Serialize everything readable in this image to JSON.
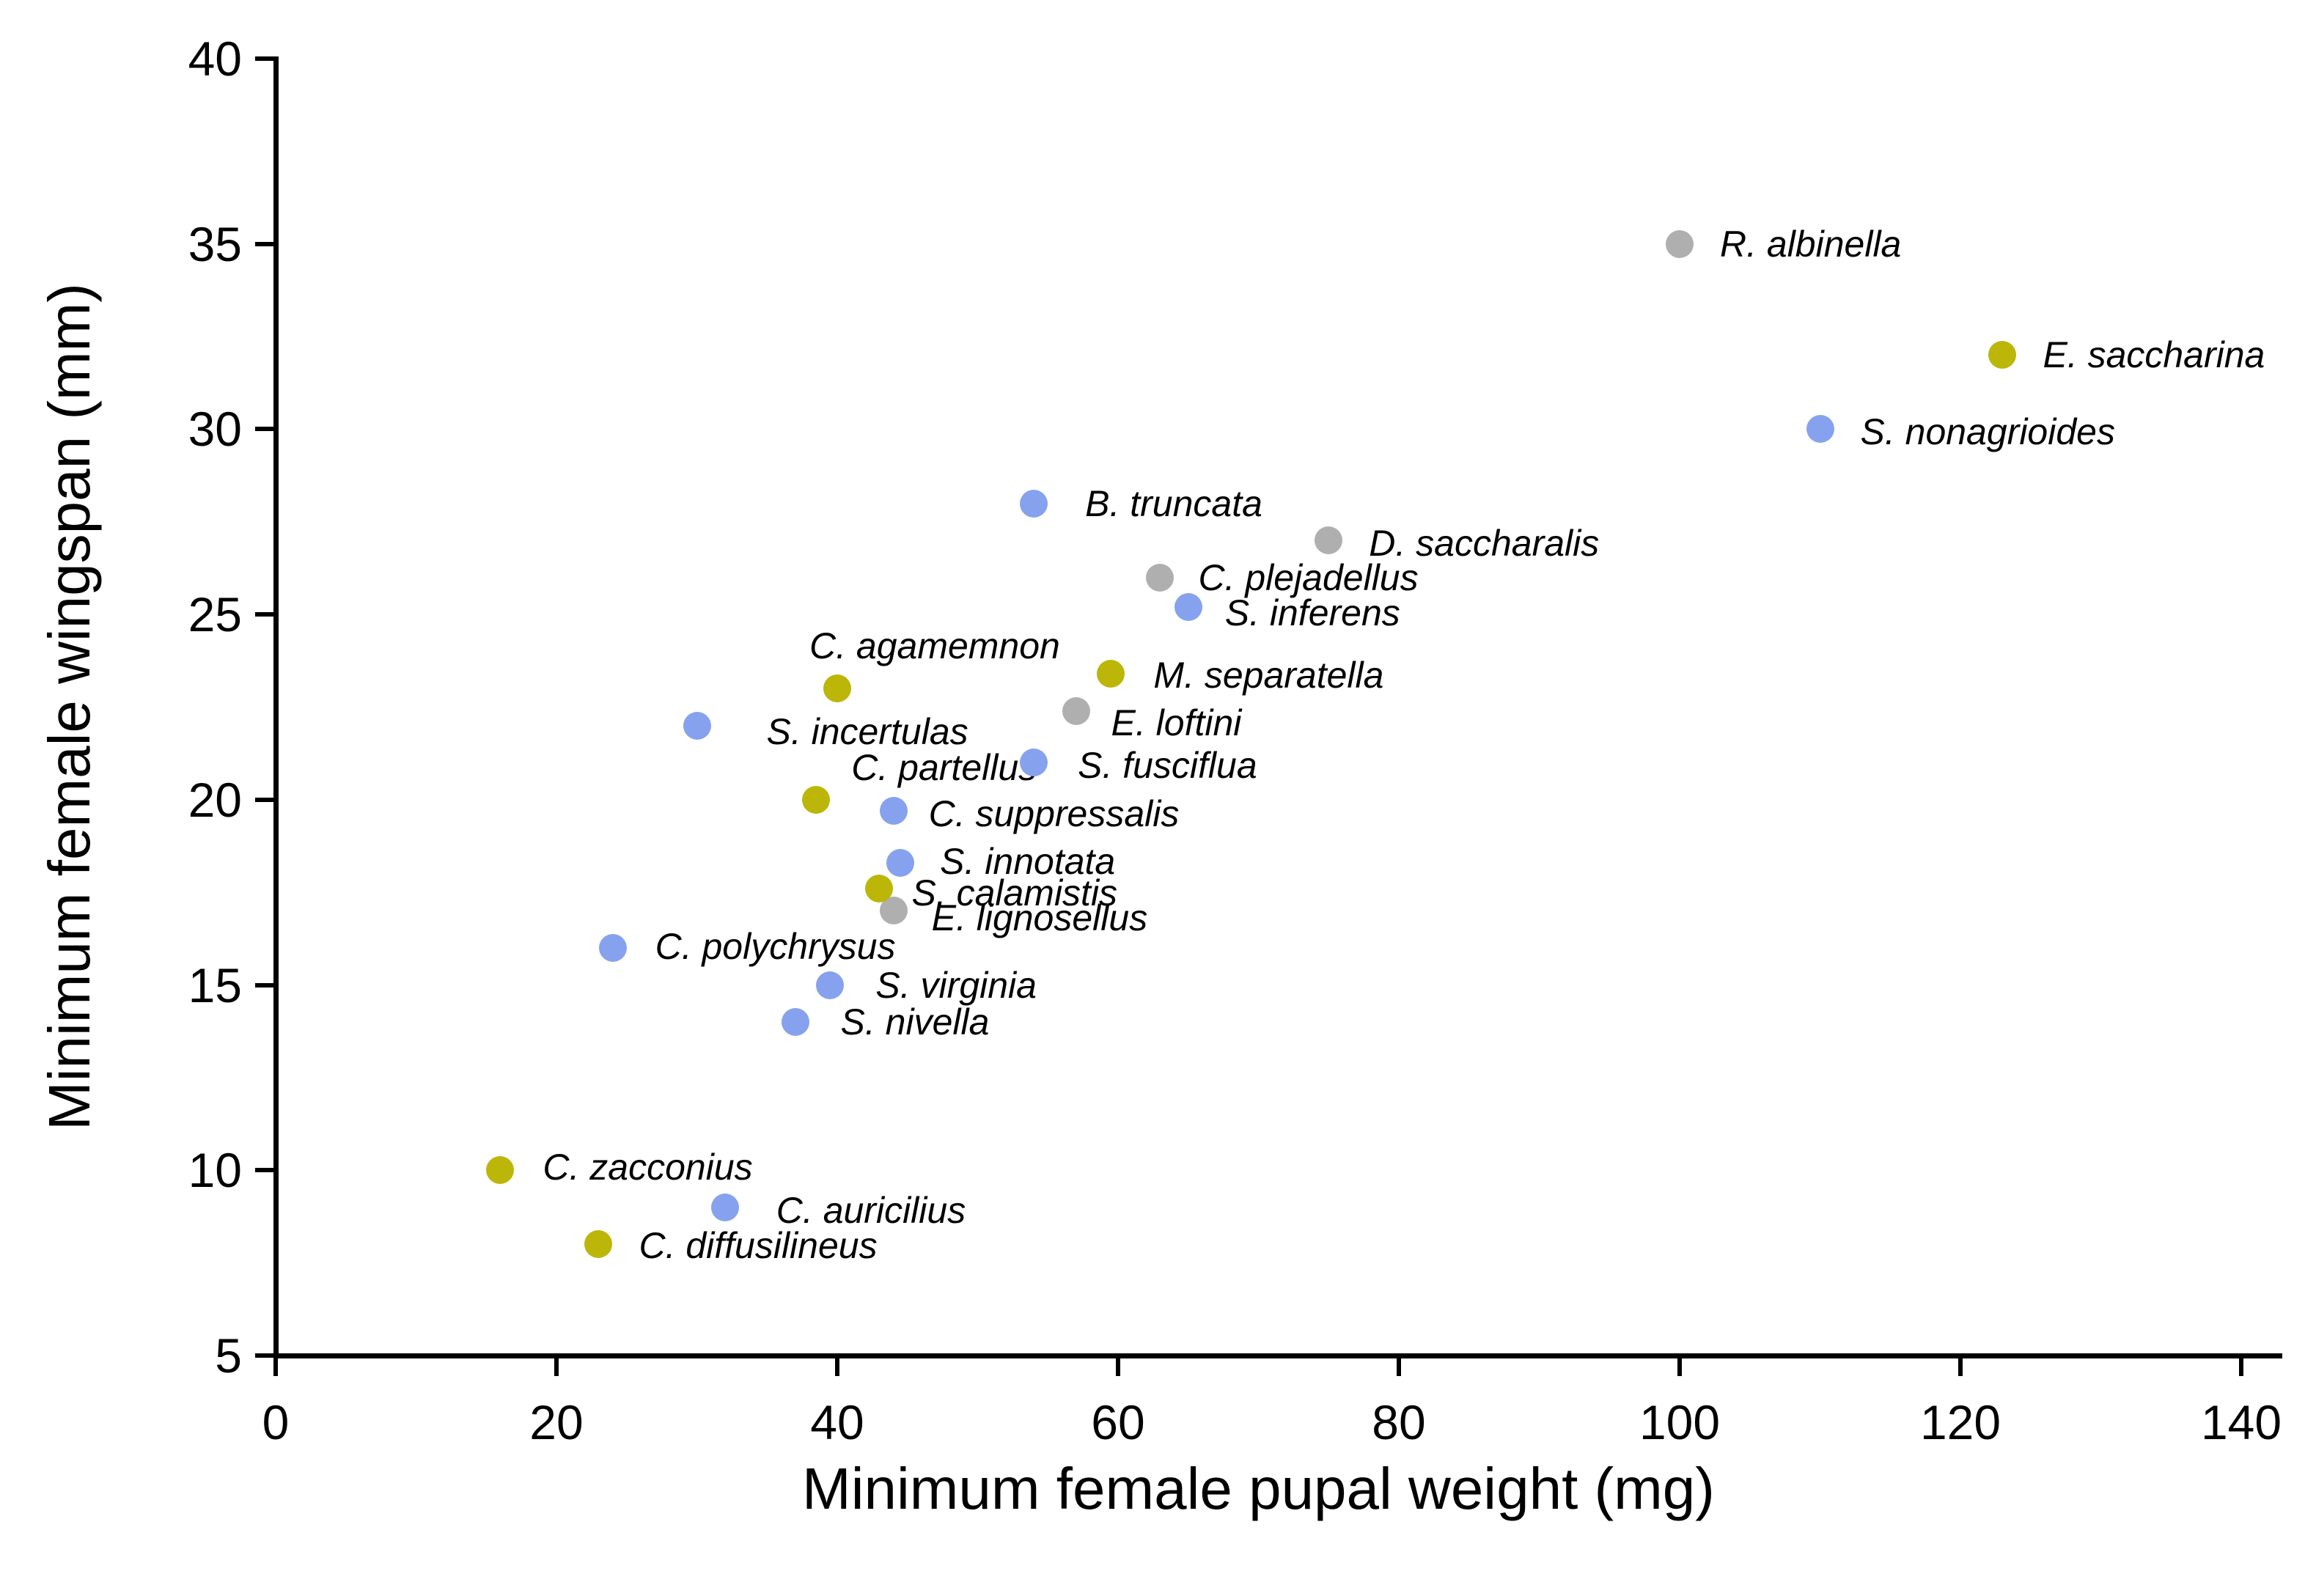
{
  "chart_data": {
    "type": "scatter",
    "title": "",
    "xlabel": "Minimum female pupal weight (mg)",
    "ylabel": "Minimum female wingspan (mm)",
    "xlim": [
      0,
      140
    ],
    "ylim": [
      5,
      40
    ],
    "x_ticks": [
      0,
      20,
      40,
      60,
      80,
      100,
      120,
      140
    ],
    "y_ticks": [
      5,
      10,
      15,
      20,
      25,
      30,
      35,
      40
    ],
    "grid": false,
    "legend": "none",
    "marker_colors": {
      "blue": "#86A2EE",
      "olive": "#BCB609",
      "gray": "#AFAFAF"
    },
    "points": [
      {
        "label": "C. zacconius",
        "x": 16,
        "y": 10,
        "color": "olive",
        "label_offset": [
          58,
          -4
        ]
      },
      {
        "label": "C. diffusilineus",
        "x": 23,
        "y": 8,
        "color": "olive",
        "label_offset": [
          55,
          2
        ]
      },
      {
        "label": "C. auricilius",
        "x": 32,
        "y": 9,
        "color": "blue",
        "label_offset": [
          70,
          4
        ]
      },
      {
        "label": "S. nivella",
        "x": 37,
        "y": 14,
        "color": "blue",
        "label_offset": [
          62,
          0
        ]
      },
      {
        "label": "S. virginia",
        "x": 39.5,
        "y": 15,
        "color": "blue",
        "label_offset": [
          62,
          0
        ]
      },
      {
        "label": "C. polychrysus",
        "x": 24,
        "y": 16,
        "color": "blue",
        "label_offset": [
          58,
          -2
        ]
      },
      {
        "label": "E. lignosellus",
        "x": 44,
        "y": 17,
        "color": "gray",
        "label_offset": [
          52,
          10
        ]
      },
      {
        "label": "S. calamistis",
        "x": 43,
        "y": 17.6,
        "color": "olive",
        "label_offset": [
          44,
          6
        ]
      },
      {
        "label": "S. innotata",
        "x": 44.5,
        "y": 18.3,
        "color": "blue",
        "label_offset": [
          54,
          -2
        ]
      },
      {
        "label": "C. suppressalis",
        "x": 44,
        "y": 19.7,
        "color": "blue",
        "label_offset": [
          48,
          4
        ]
      },
      {
        "label": "C. partellus",
        "x": 38.5,
        "y": 20,
        "color": "olive",
        "label_offset": [
          48,
          -44
        ]
      },
      {
        "label": "S. fusciflua",
        "x": 54,
        "y": 21,
        "color": "blue",
        "label_offset": [
          60,
          4
        ]
      },
      {
        "label": "S. incertulas",
        "x": 30,
        "y": 22,
        "color": "blue",
        "label_offset": [
          95,
          8
        ]
      },
      {
        "label": "E. loftini",
        "x": 57,
        "y": 22.4,
        "color": "gray",
        "label_offset": [
          48,
          16
        ]
      },
      {
        "label": "C. agamemnon",
        "x": 40,
        "y": 23,
        "color": "olive",
        "label_offset": [
          -38,
          -58
        ]
      },
      {
        "label": "M. separatella",
        "x": 59.5,
        "y": 23.4,
        "color": "olive",
        "label_offset": [
          58,
          2
        ]
      },
      {
        "label": "S. inferens",
        "x": 65,
        "y": 25.2,
        "color": "blue",
        "label_offset": [
          50,
          8
        ]
      },
      {
        "label": "C. plejadellus",
        "x": 63,
        "y": 26,
        "color": "gray",
        "label_offset": [
          52,
          0
        ]
      },
      {
        "label": "D. saccharalis",
        "x": 75,
        "y": 27,
        "color": "gray",
        "label_offset": [
          55,
          4
        ]
      },
      {
        "label": "B. truncata",
        "x": 54,
        "y": 28,
        "color": "blue",
        "label_offset": [
          70,
          0
        ]
      },
      {
        "label": "S. nonagrioides",
        "x": 110,
        "y": 30,
        "color": "blue",
        "label_offset": [
          55,
          4
        ]
      },
      {
        "label": "E. saccharina",
        "x": 123,
        "y": 32,
        "color": "olive",
        "label_offset": [
          55,
          0
        ]
      },
      {
        "label": "R. albinella",
        "x": 100,
        "y": 35,
        "color": "gray",
        "label_offset": [
          55,
          0
        ]
      }
    ]
  }
}
